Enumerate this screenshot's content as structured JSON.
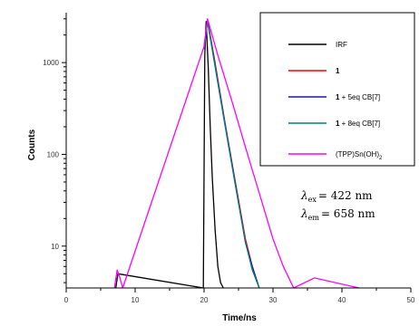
{
  "chart_data": {
    "type": "line",
    "xlabel": "Time/ns",
    "ylabel": "Counts",
    "xlim": [
      0,
      50
    ],
    "ylim": [
      3.5,
      3500
    ],
    "y_scale": "log",
    "x_ticks": [
      "0",
      "10",
      "20",
      "30",
      "40",
      "50"
    ],
    "y_ticks": [
      "10",
      "100",
      "1000"
    ],
    "legend_position": "top-right",
    "series": [
      {
        "name": "IRF",
        "color": "#000000",
        "x": [
          7.2,
          7.5,
          19.9,
          20.1,
          20.3,
          20.6,
          20.9,
          21.2,
          21.6,
          22.0,
          22.4,
          22.8
        ],
        "y": [
          3.5,
          5,
          3.5,
          1200,
          2800,
          900,
          200,
          55,
          15,
          6,
          4,
          3.5
        ]
      },
      {
        "name": "1",
        "color": "#ff0000",
        "x": [
          20.0,
          20.5,
          21.5,
          23.0,
          24.5,
          26.0,
          27.0,
          28.0
        ],
        "y": [
          1500,
          2900,
          1100,
          230,
          52,
          12,
          6,
          3.5
        ]
      },
      {
        "name": "1 + 5eq CB[7]",
        "color": "#1a1aa6",
        "x": [
          20.0,
          20.5,
          21.5,
          23.0,
          24.5,
          26.0,
          27.0,
          28.0
        ],
        "y": [
          1450,
          2850,
          1050,
          225,
          50,
          11,
          6,
          3.5
        ]
      },
      {
        "name": "1 + 8eq CB[7]",
        "color": "#008080",
        "x": [
          20.0,
          20.5,
          21.5,
          23.0,
          24.5,
          26.0,
          27.0,
          28.0
        ],
        "y": [
          1400,
          2800,
          1000,
          215,
          48,
          11,
          5.5,
          3.5
        ]
      },
      {
        "name": "(TPP)Sn(OH)2",
        "color": "#ff00ff",
        "x": [
          7.0,
          7.4,
          7.8,
          8.2,
          20.0,
          20.5,
          22.0,
          24.0,
          26.0,
          28.0,
          30.0,
          31.5,
          33.0,
          36.0,
          42.5
        ],
        "y": [
          3.5,
          5.5,
          4.5,
          3.5,
          1500,
          3000,
          1200,
          390,
          120,
          38,
          12,
          6,
          3.5,
          4.5,
          3.5
        ]
      }
    ]
  },
  "legend": {
    "items": [
      {
        "prefix": "",
        "text": "IRF",
        "color": "#000000"
      },
      {
        "prefix": "1",
        "text": "",
        "color": "#ff0000"
      },
      {
        "prefix": "1",
        "text": " + 5eq CB[7]",
        "color": "#1a1aa6"
      },
      {
        "prefix": "1",
        "text": " + 8eq CB[7]",
        "color": "#008080"
      },
      {
        "prefix": "",
        "text": "(TPP)Sn(OH)",
        "sub": "2",
        "color": "#ff00ff"
      }
    ]
  },
  "annotations": {
    "lambda_ex_sub": "ex",
    "lambda_ex_value": "= 422 nm",
    "lambda_em_sub": "em",
    "lambda_em_value": "= 658 nm"
  }
}
